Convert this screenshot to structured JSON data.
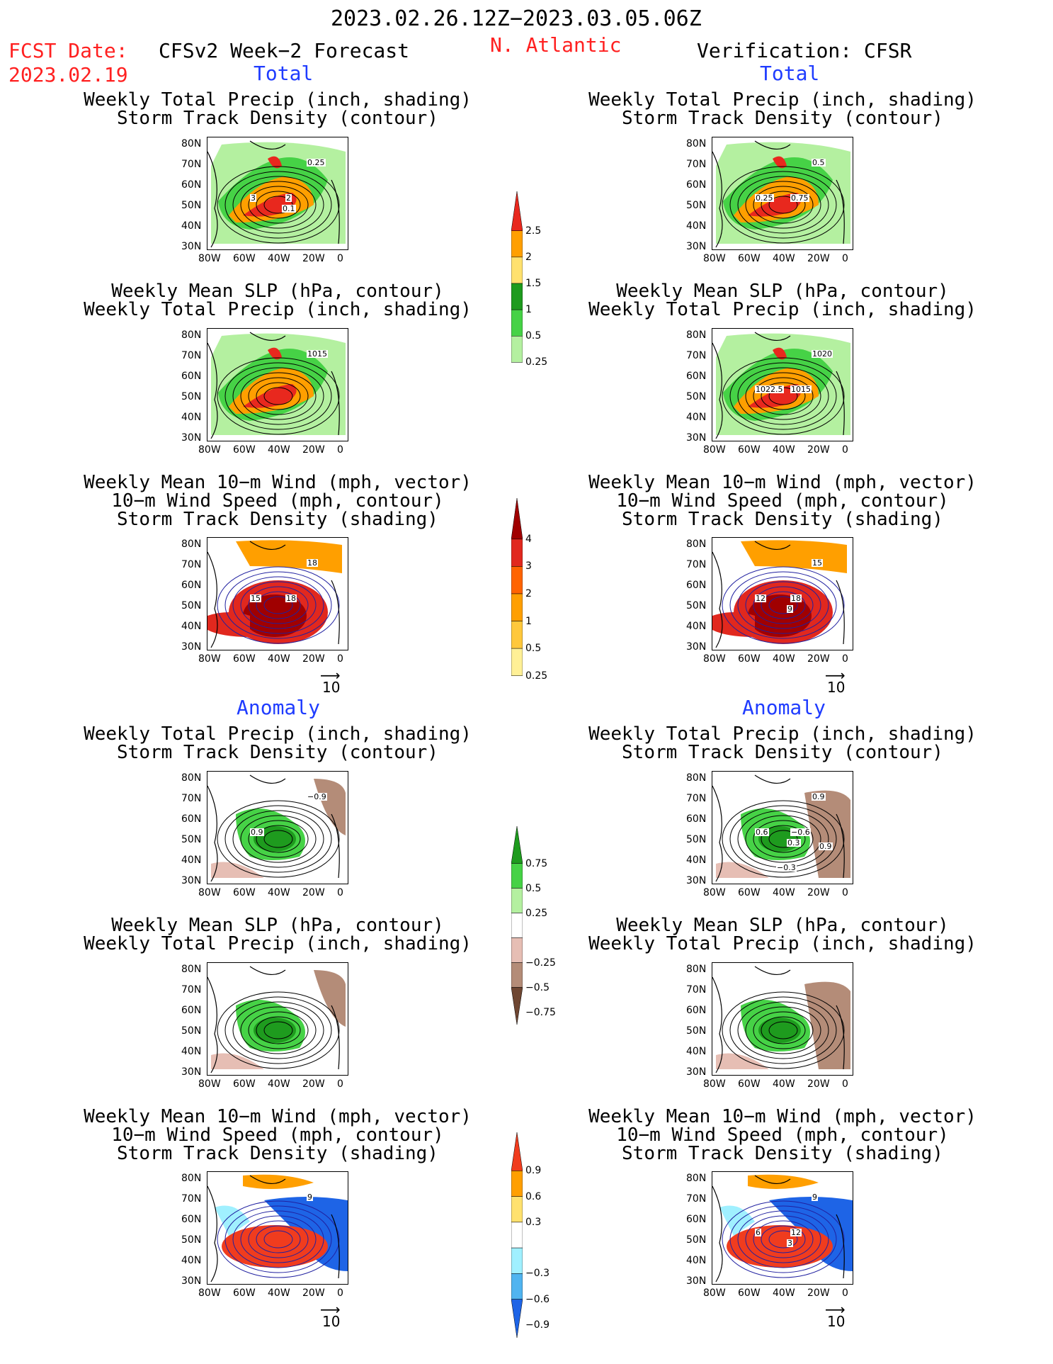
{
  "header": {
    "period": "2023.02.26.12Z−2023.03.05.06Z",
    "fcst_date_label": "FCST Date:",
    "fcst_date": "2023.02.19",
    "left_title": "CFSv2 Week−2 Forecast",
    "region": "N. Atlantic",
    "right_title": "Verification: CFSR"
  },
  "sections": {
    "total": "Total",
    "anomaly": "Anomaly"
  },
  "panel_titles": {
    "precip_track": [
      "Weekly Total Precip (inch, shading)",
      "Storm Track Density (contour)"
    ],
    "slp_precip": [
      "Weekly Mean SLP (hPa, contour)",
      "Weekly Total Precip (inch, shading)"
    ],
    "wind_track": [
      "Weekly Mean 10−m Wind (mph, vector)",
      "10−m Wind Speed (mph, contour)",
      "Storm Track Density (shading)"
    ]
  },
  "axes": {
    "lat_labels": [
      "80N",
      "70N",
      "60N",
      "50N",
      "40N",
      "30N"
    ],
    "lon_labels": [
      "80W",
      "60W",
      "40W",
      "20W",
      "0"
    ]
  },
  "vector_ref": "10",
  "colorbars": [
    {
      "name": "total-precip",
      "labels": [
        "2.5",
        "2",
        "1.5",
        "1",
        "0.5",
        "0.25"
      ],
      "colors": [
        "#e8281e",
        "#ff9f00",
        "#ffe16e",
        "#1e9b1e",
        "#46d246",
        "#b4f0a0"
      ]
    },
    {
      "name": "total-track",
      "labels": [
        "4",
        "3",
        "2",
        "1",
        "0.5",
        "0.25"
      ],
      "colors": [
        "#a00000",
        "#e1281e",
        "#ff6400",
        "#ff9f00",
        "#ffc83c",
        "#fff096"
      ]
    },
    {
      "name": "anom-precip",
      "labels": [
        "0.75",
        "0.5",
        "0.25",
        "−0.25",
        "−0.5",
        "−0.75"
      ],
      "colors": [
        "#1e9b1e",
        "#46d246",
        "#b4f0a0",
        "#ffffff",
        "#e6beb4",
        "#b48c78",
        "#6e4632"
      ]
    },
    {
      "name": "anom-track",
      "labels": [
        "0.9",
        "0.6",
        "0.3",
        "−0.3",
        "−0.6",
        "−0.9"
      ],
      "colors": [
        "#f03c1e",
        "#ff9f00",
        "#ffe16e",
        "#ffffff",
        "#a0f0ff",
        "#50b4f0",
        "#1e64e6"
      ]
    }
  ],
  "panels": {
    "L1": {
      "labels": [
        "0.25",
        "3",
        "2",
        "0.1"
      ]
    },
    "L2": {
      "labels": [
        "1015"
      ]
    },
    "L3": {
      "labels": [
        "18",
        "15",
        "18"
      ]
    },
    "L4": {
      "labels": [
        "−0.9",
        "0.9"
      ]
    },
    "L5": {
      "labels": []
    },
    "L6": {
      "labels": [
        "9"
      ]
    },
    "R1": {
      "labels": [
        "0.5",
        "0.25",
        "0.75"
      ]
    },
    "R2": {
      "labels": [
        "1020",
        "1022.5",
        "1015"
      ]
    },
    "R3": {
      "labels": [
        "15",
        "12",
        "18",
        "9"
      ]
    },
    "R4": {
      "labels": [
        "0.9",
        "0.6",
        "−0.6",
        "0.3",
        "−0.3",
        "0.9"
      ]
    },
    "R5": {
      "labels": []
    },
    "R6": {
      "labels": [
        "9",
        "6",
        "12",
        "3"
      ]
    }
  }
}
